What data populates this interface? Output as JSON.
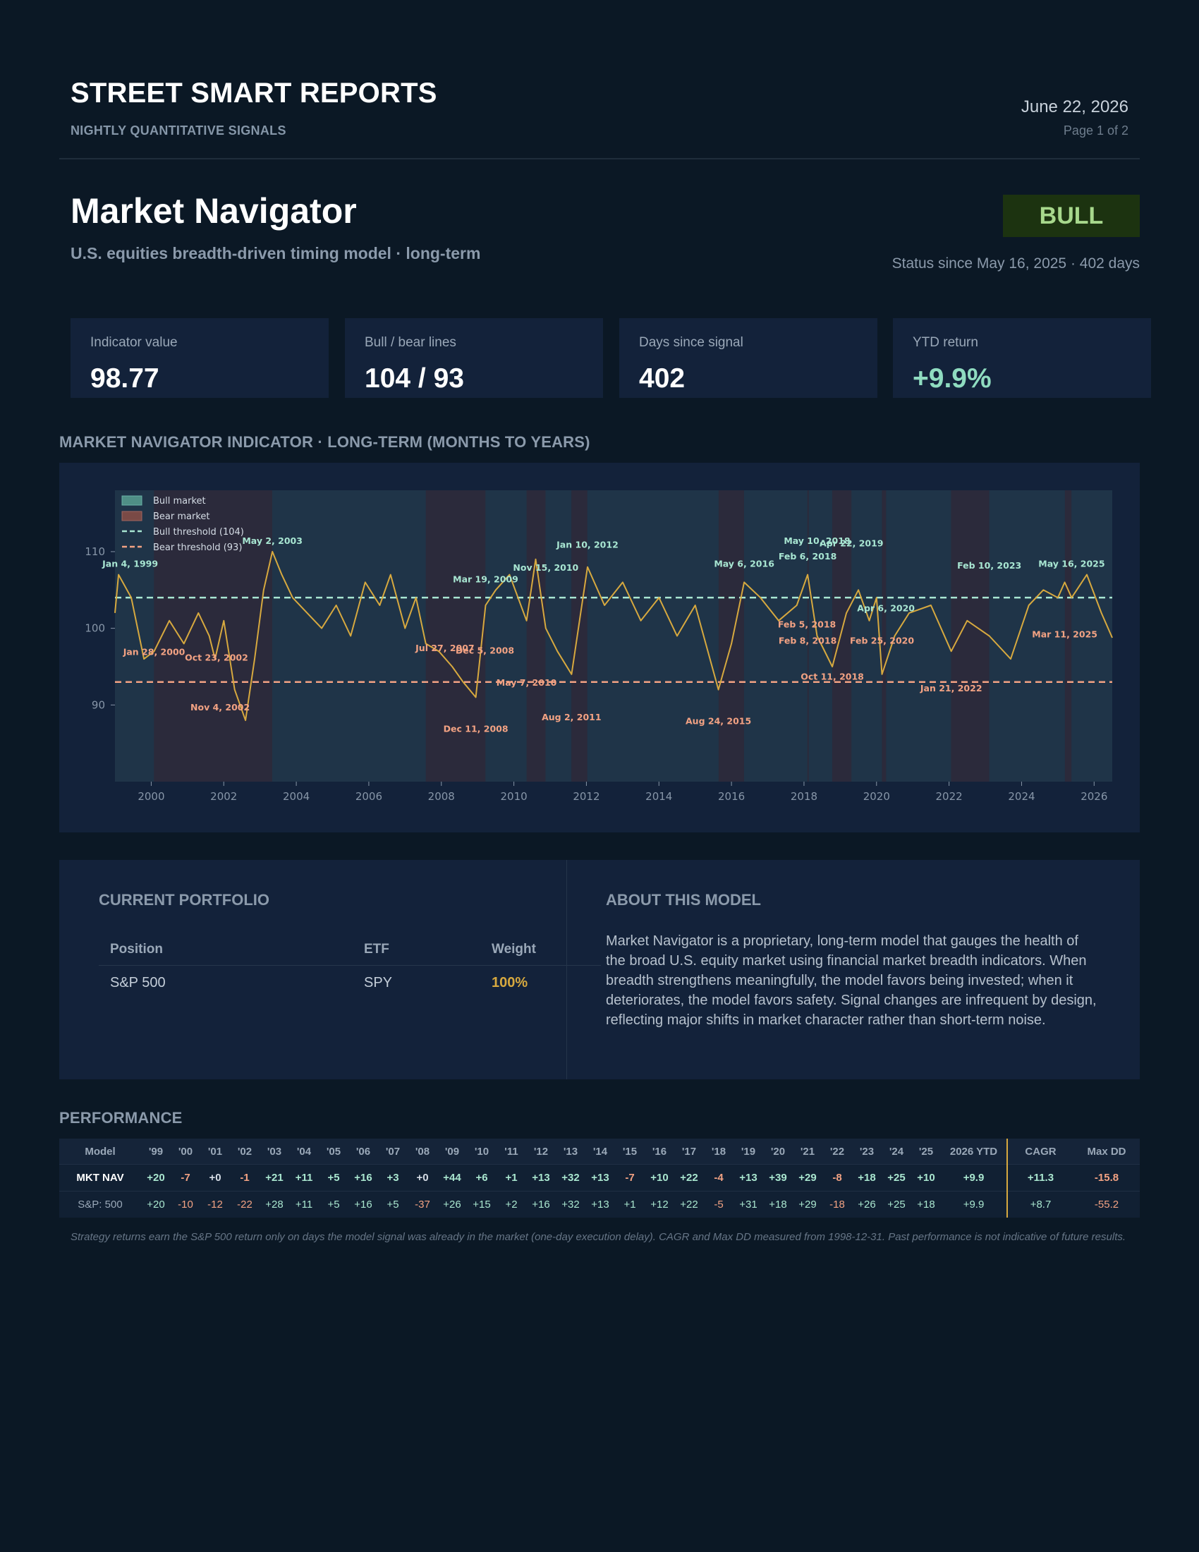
{
  "header": {
    "brand": "STREET SMART REPORTS",
    "brand_sub": "NIGHTLY QUANTITATIVE SIGNALS",
    "date": "June 22, 2026",
    "page": "Page 1 of 2"
  },
  "model": {
    "title": "Market Navigator",
    "subtitle": "U.S. equities breadth-driven timing model · long-term",
    "status": "BULL",
    "status_since": "Status since May 16, 2025 · 402 days"
  },
  "kpis": [
    {
      "label": "Indicator value",
      "value": "98.77"
    },
    {
      "label": "Bull / bear lines",
      "value": "104 / 93"
    },
    {
      "label": "Days since signal",
      "value": "402"
    },
    {
      "label": "YTD return",
      "value": "+9.9%"
    }
  ],
  "chart_section_title": "MARKET NAVIGATOR INDICATOR · LONG-TERM (MONTHS TO YEARS)",
  "chart_data": {
    "type": "line",
    "title": "",
    "xlabel": "",
    "ylabel": "",
    "xlim": [
      1999.0,
      2026.5
    ],
    "ylim": [
      80,
      118
    ],
    "x_ticks": [
      "2000",
      "2002",
      "2004",
      "2006",
      "2008",
      "2010",
      "2012",
      "2014",
      "2016",
      "2018",
      "2020",
      "2022",
      "2024",
      "2026"
    ],
    "y_ticks": [
      "90",
      "100",
      "110"
    ],
    "legend": [
      "Bull market",
      "Bear market",
      "Bull threshold (104)",
      "Bear threshold (93)"
    ],
    "legend_position": "top-left",
    "thresholds": {
      "bull": 104,
      "bear": 93
    },
    "colors": {
      "line": "#d7a93f",
      "bull_line": "#a8e6d2",
      "bear_line": "#f2a283",
      "bull_fill": "#21384a",
      "bear_fill": "#2b2a3b",
      "plot_bg": "#1f3448"
    },
    "series": [
      {
        "x": [
          1999.0,
          1999.1,
          1999.45,
          1999.8,
          2000.08,
          2000.5,
          2000.9,
          2001.3,
          2001.6,
          2001.76,
          2002.0,
          2002.3,
          2002.6,
          2002.85,
          2003.1,
          2003.34,
          2003.6,
          2003.9,
          2004.3,
          2004.7,
          2005.1,
          2005.5,
          2005.9,
          2006.3,
          2006.6,
          2007.0,
          2007.3,
          2007.57,
          2007.93,
          2008.3,
          2008.6,
          2008.95,
          2009.22,
          2009.5,
          2009.88,
          2010.35,
          2010.6,
          2010.88,
          2011.2,
          2011.59,
          2012.03,
          2012.5,
          2013.0,
          2013.5,
          2014.0,
          2014.5,
          2015.0,
          2015.64,
          2016.0,
          2016.35,
          2016.8,
          2017.3,
          2017.8,
          2018.1,
          2018.36,
          2018.78,
          2019.17,
          2019.5,
          2019.8,
          2020.0,
          2020.15,
          2020.5,
          2020.9,
          2021.5,
          2022.06,
          2022.5,
          2023.11,
          2023.7,
          2024.2,
          2024.6,
          2025.0,
          2025.19,
          2025.38,
          2025.8,
          2026.2,
          2026.5
        ],
        "y": [
          102,
          107,
          104,
          96,
          97,
          101,
          98,
          102,
          99,
          96,
          101,
          92,
          88,
          96,
          105,
          110,
          107,
          104,
          102,
          100,
          103,
          99,
          106,
          103,
          107,
          100,
          104,
          98,
          97,
          95,
          93,
          91,
          103,
          105,
          107,
          101,
          109,
          100,
          97,
          94,
          108,
          103,
          106,
          101,
          104,
          99,
          103,
          92,
          98,
          106,
          104,
          101,
          103,
          107,
          99,
          95,
          102,
          105,
          101,
          104,
          94,
          99,
          102,
          103,
          97,
          101,
          99,
          96,
          103,
          105,
          104,
          106,
          104,
          107,
          102,
          98.77
        ]
      }
    ],
    "bear_periods": [
      [
        "2000-01-28",
        "2003-05-02"
      ],
      [
        "2007-07-27",
        "2009-03-19"
      ],
      [
        "2010-05-07",
        "2010-11-15"
      ],
      [
        "2011-08-02",
        "2012-01-10"
      ],
      [
        "2015-08-24",
        "2016-05-06"
      ],
      [
        "2018-02-05",
        "2018-02-08"
      ],
      [
        "2018-10-11",
        "2019-04-22"
      ],
      [
        "2020-02-25",
        "2020-04-06"
      ],
      [
        "2022-01-21",
        "2023-02-10"
      ],
      [
        "2025-03-11",
        "2025-05-16"
      ]
    ],
    "bull_annotations": [
      {
        "x": 1999.42,
        "y": 108,
        "label": "Jan 4, 1999"
      },
      {
        "x": 2003.34,
        "y": 111,
        "label": "May 2, 2003"
      },
      {
        "x": 2009.22,
        "y": 106,
        "label": "Mar 19, 2009"
      },
      {
        "x": 2010.88,
        "y": 107.5,
        "label": "Nov 15, 2010"
      },
      {
        "x": 2012.03,
        "y": 110.5,
        "label": "Jan 10, 2012"
      },
      {
        "x": 2016.35,
        "y": 108,
        "label": "May 6, 2016"
      },
      {
        "x": 2018.1,
        "y": 109,
        "label": "Feb 6, 2018"
      },
      {
        "x": 2018.36,
        "y": 111,
        "label": "May 10, 2018"
      },
      {
        "x": 2019.31,
        "y": 110.7,
        "label": "Apr 22, 2019"
      },
      {
        "x": 2020.26,
        "y": 102.2,
        "label": "Apr 6, 2020"
      },
      {
        "x": 2023.11,
        "y": 107.8,
        "label": "Feb 10, 2023"
      },
      {
        "x": 2025.38,
        "y": 108,
        "label": "May 16, 2025"
      }
    ],
    "bear_annotations": [
      {
        "x": 2000.08,
        "y": 96.5,
        "label": "Jan 28, 2000"
      },
      {
        "x": 2001.8,
        "y": 95.8,
        "label": "Oct 23, 2002"
      },
      {
        "x": 2001.9,
        "y": 89.3,
        "label": "Nov 4, 2002"
      },
      {
        "x": 2008.1,
        "y": 97,
        "label": "Jul 27, 2007"
      },
      {
        "x": 2009.2,
        "y": 96.7,
        "label": "Dec 5, 2008"
      },
      {
        "x": 2008.95,
        "y": 86.5,
        "label": "Dec 11, 2008"
      },
      {
        "x": 2010.35,
        "y": 92.5,
        "label": "May 7, 2010"
      },
      {
        "x": 2011.59,
        "y": 88,
        "label": "Aug 2, 2011"
      },
      {
        "x": 2015.64,
        "y": 87.5,
        "label": "Aug 24, 2015"
      },
      {
        "x": 2018.08,
        "y": 100.1,
        "label": "Feb 5, 2018"
      },
      {
        "x": 2018.1,
        "y": 98,
        "label": "Feb 8, 2018"
      },
      {
        "x": 2018.78,
        "y": 93.3,
        "label": "Oct 11, 2018"
      },
      {
        "x": 2020.15,
        "y": 98,
        "label": "Feb 25, 2020"
      },
      {
        "x": 2022.06,
        "y": 91.8,
        "label": "Jan 21, 2022"
      },
      {
        "x": 2025.19,
        "y": 98.8,
        "label": "Mar 11, 2025"
      }
    ]
  },
  "portfolio": {
    "title": "CURRENT PORTFOLIO",
    "headers": [
      "Position",
      "ETF",
      "Weight"
    ],
    "rows": [
      [
        "S&P 500",
        "SPY",
        "100%"
      ]
    ]
  },
  "about": {
    "title": "ABOUT THIS MODEL",
    "text": "Market Navigator is a proprietary, long-term model that gauges the health of the broad U.S. equity market using financial market breadth indicators. When breadth strengthens meaningfully, the model favors being invested; when it deteriorates, the model favors safety. Signal changes are infrequent by design, reflecting major shifts in market character rather than short-term noise."
  },
  "performance": {
    "title": "PERFORMANCE",
    "headers": [
      "Model",
      "'99",
      "'00",
      "'01",
      "'02",
      "'03",
      "'04",
      "'05",
      "'06",
      "'07",
      "'08",
      "'09",
      "'10",
      "'11",
      "'12",
      "'13",
      "'14",
      "'15",
      "'16",
      "'17",
      "'18",
      "'19",
      "'20",
      "'21",
      "'22",
      "'23",
      "'24",
      "'25",
      "2026 YTD",
      "CAGR",
      "Max DD"
    ],
    "rows": [
      [
        "MKT NAV",
        "+20",
        "-7",
        "+0",
        "-1",
        "+21",
        "+11",
        "+5",
        "+16",
        "+3",
        "+0",
        "+44",
        "+6",
        "+1",
        "+13",
        "+32",
        "+13",
        "-7",
        "+10",
        "+22",
        "-4",
        "+13",
        "+39",
        "+29",
        "-8",
        "+18",
        "+25",
        "+10",
        "+9.9",
        "+11.3",
        "-15.8"
      ],
      [
        "S&P: 500",
        "+20",
        "-10",
        "-12",
        "-22",
        "+28",
        "+11",
        "+5",
        "+16",
        "+5",
        "-37",
        "+26",
        "+15",
        "+2",
        "+16",
        "+32",
        "+13",
        "+1",
        "+12",
        "+22",
        "-5",
        "+31",
        "+18",
        "+29",
        "-18",
        "+26",
        "+25",
        "+18",
        "+9.9",
        "+8.7",
        "-55.2"
      ]
    ],
    "footnote": "Strategy returns earn the S&P 500 return only on days the model signal was already in the market (one-day execution delay). CAGR and Max DD measured from 1998-12-31. Past performance is not indicative of future results."
  }
}
